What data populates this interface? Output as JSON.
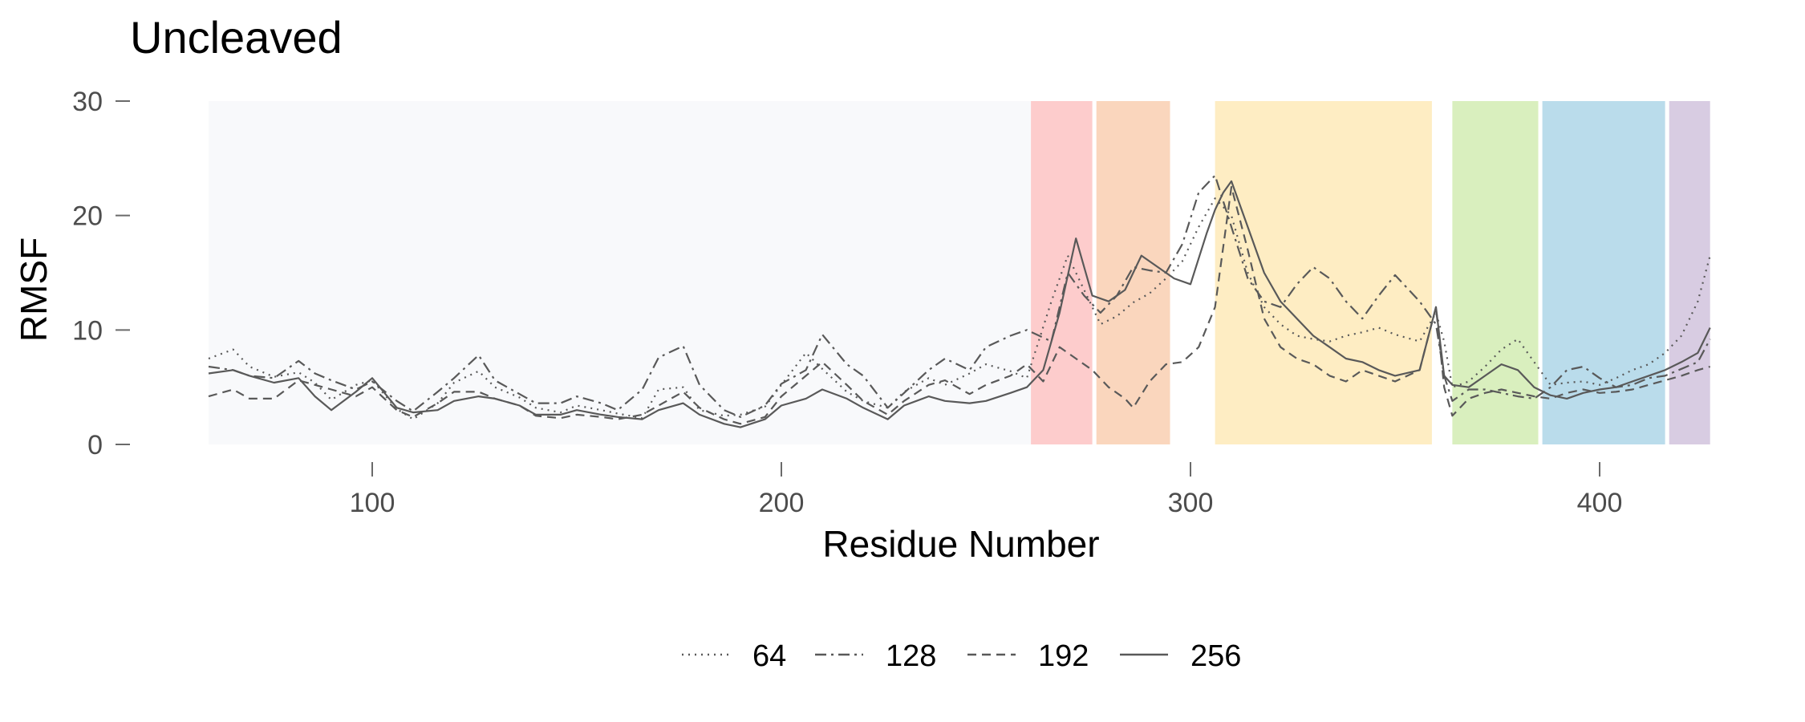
{
  "chart_data": {
    "type": "line",
    "title": "Uncleaved",
    "xlabel": "Residue Number",
    "ylabel": "RMSF",
    "xlim": [
      59,
      431
    ],
    "ylim": [
      0,
      30
    ],
    "x_ticks": [
      100,
      200,
      300,
      400
    ],
    "y_ticks": [
      0,
      10,
      20,
      30
    ],
    "grid": false,
    "legend_position": "bottom",
    "line_color": "#595959",
    "domains": [
      {
        "start": 60,
        "end": 261,
        "color": "#f8f9fb"
      },
      {
        "start": 261,
        "end": 276,
        "color": "#fdcccc"
      },
      {
        "start": 277,
        "end": 295,
        "color": "#fad6bd"
      },
      {
        "start": 306,
        "end": 359,
        "color": "#feedc3"
      },
      {
        "start": 364,
        "end": 385,
        "color": "#d9efbe"
      },
      {
        "start": 386,
        "end": 416,
        "color": "#badceb"
      },
      {
        "start": 417,
        "end": 427,
        "color": "#d8cce2"
      }
    ],
    "series": [
      {
        "name": "64",
        "dash": "dotted",
        "x": [
          60,
          66,
          70,
          76,
          82,
          86,
          90,
          96,
          100,
          106,
          110,
          116,
          120,
          126,
          130,
          136,
          140,
          146,
          150,
          156,
          160,
          166,
          170,
          176,
          180,
          186,
          190,
          196,
          200,
          206,
          210,
          216,
          220,
          226,
          230,
          236,
          240,
          246,
          250,
          256,
          260,
          266,
          270,
          274,
          278,
          282,
          286,
          290,
          294,
          298,
          302,
          306,
          310,
          314,
          318,
          322,
          326,
          330,
          334,
          338,
          342,
          346,
          350,
          356,
          360,
          362,
          364,
          368,
          372,
          376,
          380,
          384,
          388,
          392,
          396,
          400,
          404,
          408,
          412,
          416,
          420,
          424,
          427
        ],
        "y": [
          7.5,
          8.3,
          6.8,
          5.9,
          6.3,
          5.4,
          3.9,
          5.2,
          5.6,
          3.1,
          2.2,
          3.6,
          5.4,
          6.4,
          5.0,
          4.1,
          3.2,
          2.8,
          3.4,
          3.0,
          2.7,
          2.3,
          4.8,
          5.0,
          3.0,
          2.5,
          2.6,
          3.3,
          5.2,
          8.0,
          6.6,
          4.6,
          3.8,
          3.2,
          4.6,
          5.8,
          5.2,
          6.2,
          7.0,
          6.4,
          5.8,
          12.5,
          16.5,
          13.5,
          10.5,
          11.2,
          12.4,
          13.2,
          14.5,
          16.0,
          19.0,
          21.5,
          20.0,
          15.0,
          12.0,
          10.5,
          9.5,
          9.2,
          9.0,
          9.5,
          9.8,
          10.2,
          9.6,
          9.0,
          11.5,
          9.0,
          5.0,
          5.5,
          6.8,
          8.3,
          9.2,
          7.2,
          5.2,
          5.4,
          5.5,
          5.2,
          5.8,
          6.5,
          7.0,
          8.0,
          9.5,
          12.5,
          16.5
        ]
      },
      {
        "name": "128",
        "dash": "dashdot",
        "x": [
          60,
          66,
          70,
          76,
          82,
          86,
          90,
          96,
          100,
          106,
          110,
          116,
          120,
          126,
          130,
          136,
          140,
          146,
          150,
          156,
          160,
          166,
          170,
          176,
          180,
          186,
          190,
          196,
          200,
          206,
          210,
          216,
          220,
          226,
          230,
          236,
          240,
          246,
          250,
          256,
          260,
          266,
          270,
          274,
          278,
          282,
          286,
          290,
          294,
          298,
          302,
          306,
          310,
          314,
          318,
          322,
          326,
          330,
          334,
          338,
          342,
          346,
          350,
          356,
          360,
          362,
          364,
          368,
          372,
          376,
          380,
          384,
          388,
          392,
          396,
          400,
          404,
          408,
          412,
          416,
          420,
          424,
          427
        ],
        "y": [
          6.8,
          6.5,
          6.0,
          5.8,
          7.3,
          6.2,
          5.6,
          4.8,
          5.5,
          3.8,
          2.9,
          4.6,
          5.8,
          7.8,
          5.6,
          4.4,
          3.6,
          3.6,
          4.2,
          3.6,
          3.0,
          4.8,
          7.6,
          8.6,
          5.2,
          3.0,
          2.4,
          3.4,
          5.3,
          6.5,
          9.6,
          7.0,
          6.0,
          3.2,
          4.5,
          6.5,
          7.5,
          6.5,
          8.5,
          9.5,
          10.0,
          9.0,
          15.0,
          13.0,
          11.5,
          13.0,
          15.5,
          15.2,
          15.0,
          17.5,
          22.0,
          23.5,
          19.0,
          14.5,
          12.5,
          12.0,
          14.0,
          15.5,
          14.5,
          12.5,
          11.0,
          13.0,
          14.8,
          12.5,
          10.5,
          6.0,
          3.8,
          4.8,
          4.8,
          4.5,
          4.2,
          4.0,
          5.0,
          6.5,
          6.8,
          5.8,
          5.0,
          5.2,
          5.8,
          6.0,
          6.6,
          7.2,
          9.2
        ]
      },
      {
        "name": "192",
        "dash": "dashed",
        "x": [
          60,
          66,
          70,
          76,
          82,
          86,
          90,
          96,
          100,
          106,
          110,
          116,
          120,
          126,
          130,
          136,
          140,
          146,
          150,
          156,
          160,
          166,
          170,
          176,
          180,
          186,
          190,
          196,
          200,
          206,
          210,
          216,
          220,
          226,
          230,
          236,
          240,
          246,
          250,
          256,
          260,
          264,
          268,
          272,
          276,
          280,
          284,
          286,
          290,
          294,
          298,
          302,
          306,
          310,
          314,
          318,
          322,
          326,
          330,
          334,
          338,
          342,
          346,
          350,
          356,
          360,
          362,
          364,
          368,
          372,
          376,
          380,
          384,
          388,
          392,
          396,
          400,
          404,
          408,
          412,
          416,
          420,
          424,
          427
        ],
        "y": [
          4.2,
          4.8,
          4.0,
          4.0,
          5.6,
          5.2,
          4.8,
          4.2,
          5.0,
          3.0,
          2.4,
          3.6,
          4.6,
          4.6,
          4.0,
          3.4,
          2.5,
          2.3,
          2.6,
          2.4,
          2.2,
          2.6,
          3.4,
          4.6,
          3.2,
          2.2,
          1.8,
          2.4,
          4.2,
          6.0,
          7.2,
          5.2,
          3.8,
          2.6,
          3.8,
          5.2,
          5.6,
          4.4,
          5.2,
          6.0,
          7.0,
          5.5,
          8.5,
          7.5,
          6.5,
          5.0,
          4.0,
          3.2,
          5.5,
          7.0,
          7.2,
          8.5,
          12.0,
          22.5,
          17.0,
          11.0,
          8.5,
          7.5,
          7.0,
          6.0,
          5.5,
          6.5,
          6.0,
          5.5,
          6.5,
          12.0,
          5.0,
          2.5,
          4.0,
          4.5,
          4.8,
          4.5,
          4.2,
          4.0,
          4.5,
          4.8,
          4.5,
          4.6,
          4.8,
          5.2,
          5.6,
          6.0,
          6.5,
          6.8
        ]
      },
      {
        "name": "256",
        "dash": "solid",
        "x": [
          60,
          66,
          70,
          76,
          82,
          86,
          90,
          96,
          100,
          106,
          110,
          116,
          120,
          126,
          130,
          136,
          140,
          146,
          150,
          156,
          160,
          166,
          170,
          176,
          180,
          186,
          190,
          196,
          200,
          206,
          210,
          216,
          220,
          226,
          230,
          236,
          240,
          246,
          250,
          256,
          260,
          264,
          268,
          272,
          276,
          280,
          284,
          288,
          292,
          296,
          300,
          304,
          306,
          308,
          310,
          314,
          318,
          322,
          326,
          330,
          334,
          338,
          342,
          346,
          350,
          356,
          360,
          362,
          364,
          368,
          372,
          376,
          380,
          384,
          388,
          392,
          396,
          400,
          404,
          408,
          412,
          416,
          420,
          424,
          427
        ],
        "y": [
          6.2,
          6.5,
          6.0,
          5.4,
          5.8,
          4.2,
          3.0,
          4.6,
          5.8,
          3.2,
          2.8,
          3.0,
          3.8,
          4.2,
          4.0,
          3.4,
          2.6,
          2.6,
          3.0,
          2.6,
          2.4,
          2.2,
          3.0,
          3.6,
          2.6,
          1.8,
          1.5,
          2.2,
          3.4,
          4.0,
          4.8,
          4.0,
          3.2,
          2.2,
          3.4,
          4.2,
          3.8,
          3.6,
          3.8,
          4.5,
          5.0,
          6.5,
          11.5,
          18.0,
          13.0,
          12.5,
          13.5,
          16.5,
          15.5,
          14.5,
          14.0,
          18.5,
          20.5,
          22.0,
          23.0,
          19.0,
          15.0,
          12.5,
          11.0,
          9.5,
          8.5,
          7.5,
          7.2,
          6.5,
          6.0,
          6.5,
          12.0,
          6.0,
          5.2,
          5.0,
          6.0,
          7.0,
          6.5,
          5.0,
          4.3,
          4.0,
          4.5,
          4.8,
          5.0,
          5.5,
          6.0,
          6.5,
          7.2,
          8.0,
          10.2
        ]
      }
    ]
  }
}
